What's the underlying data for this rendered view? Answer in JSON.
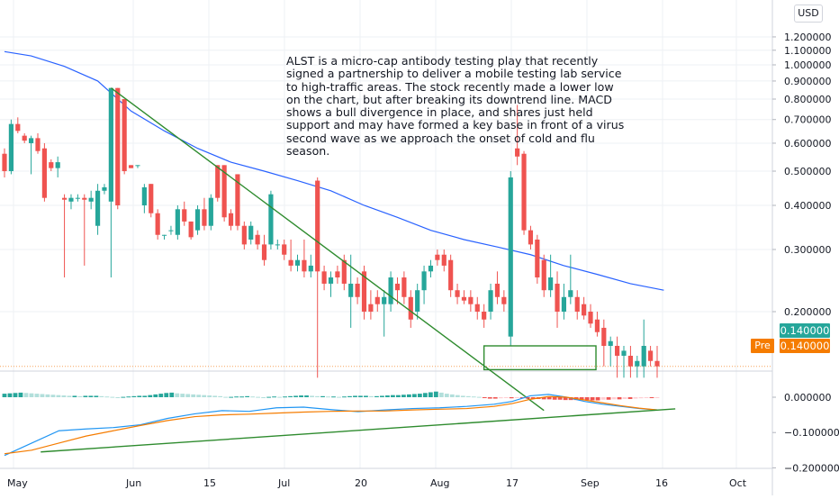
{
  "chart_data": [
    {
      "type": "candlestick",
      "symbol": "ALST",
      "currency": "USD",
      "scale": "log",
      "y_ticks": [
        "1.200000",
        "1.100000",
        "1.000000",
        "0.900000",
        "0.800000",
        "0.700000",
        "0.600000",
        "0.500000",
        "0.400000",
        "0.300000",
        "0.200000"
      ],
      "x_ticks": [
        "May",
        "Jun",
        "15",
        "Jul",
        "20",
        "Aug",
        "17",
        "Sep",
        "16",
        "Oct"
      ],
      "candles": [
        {
          "o": 0.56,
          "h": 0.58,
          "l": 0.48,
          "c": 0.5
        },
        {
          "o": 0.5,
          "h": 0.7,
          "l": 0.49,
          "c": 0.68
        },
        {
          "o": 0.68,
          "h": 0.71,
          "l": 0.64,
          "c": 0.65
        },
        {
          "o": 0.63,
          "h": 0.64,
          "l": 0.6,
          "c": 0.61
        },
        {
          "o": 0.6,
          "h": 0.63,
          "l": 0.49,
          "c": 0.62
        },
        {
          "o": 0.62,
          "h": 0.64,
          "l": 0.56,
          "c": 0.57
        },
        {
          "o": 0.58,
          "h": 0.6,
          "l": 0.41,
          "c": 0.42
        },
        {
          "o": 0.53,
          "h": 0.54,
          "l": 0.5,
          "c": 0.51
        },
        {
          "o": 0.51,
          "h": 0.55,
          "l": 0.48,
          "c": 0.53
        },
        {
          "o": 0.42,
          "h": 0.43,
          "l": 0.25,
          "c": 0.415
        },
        {
          "o": 0.41,
          "h": 0.43,
          "l": 0.39,
          "c": 0.42
        },
        {
          "o": 0.42,
          "h": 0.43,
          "l": 0.41,
          "c": 0.42
        },
        {
          "o": 0.42,
          "h": 0.43,
          "l": 0.27,
          "c": 0.415
        },
        {
          "o": 0.41,
          "h": 0.44,
          "l": 0.39,
          "c": 0.42
        },
        {
          "o": 0.35,
          "h": 0.46,
          "l": 0.33,
          "c": 0.44
        },
        {
          "o": 0.44,
          "h": 0.46,
          "l": 0.43,
          "c": 0.45
        },
        {
          "o": 0.41,
          "h": 0.86,
          "l": 0.25,
          "c": 0.86
        },
        {
          "o": 0.86,
          "h": 0.86,
          "l": 0.39,
          "c": 0.4
        },
        {
          "o": 0.8,
          "h": 0.8,
          "l": 0.49,
          "c": 0.5
        },
        {
          "o": 0.52,
          "h": 0.52,
          "l": 0.51,
          "c": 0.51
        },
        {
          "o": 0.52,
          "h": 0.52,
          "l": 0.51,
          "c": 0.52
        },
        {
          "o": 0.4,
          "h": 0.46,
          "l": 0.38,
          "c": 0.45
        },
        {
          "o": 0.46,
          "h": 0.46,
          "l": 0.37,
          "c": 0.38
        },
        {
          "o": 0.38,
          "h": 0.39,
          "l": 0.32,
          "c": 0.33
        },
        {
          "o": 0.33,
          "h": 0.33,
          "l": 0.32,
          "c": 0.33
        },
        {
          "o": 0.34,
          "h": 0.35,
          "l": 0.33,
          "c": 0.34
        },
        {
          "o": 0.33,
          "h": 0.4,
          "l": 0.32,
          "c": 0.39
        },
        {
          "o": 0.39,
          "h": 0.41,
          "l": 0.35,
          "c": 0.36
        },
        {
          "o": 0.36,
          "h": 0.36,
          "l": 0.32,
          "c": 0.325
        },
        {
          "o": 0.34,
          "h": 0.4,
          "l": 0.33,
          "c": 0.39
        },
        {
          "o": 0.39,
          "h": 0.42,
          "l": 0.34,
          "c": 0.35
        },
        {
          "o": 0.35,
          "h": 0.43,
          "l": 0.34,
          "c": 0.42
        },
        {
          "o": 0.52,
          "h": 0.52,
          "l": 0.41,
          "c": 0.42
        },
        {
          "o": 0.52,
          "h": 0.52,
          "l": 0.36,
          "c": 0.37
        },
        {
          "o": 0.38,
          "h": 0.39,
          "l": 0.34,
          "c": 0.35
        },
        {
          "o": 0.49,
          "h": 0.49,
          "l": 0.34,
          "c": 0.35
        },
        {
          "o": 0.35,
          "h": 0.36,
          "l": 0.3,
          "c": 0.31
        },
        {
          "o": 0.32,
          "h": 0.36,
          "l": 0.31,
          "c": 0.35
        },
        {
          "o": 0.33,
          "h": 0.34,
          "l": 0.3,
          "c": 0.31
        },
        {
          "o": 0.31,
          "h": 0.33,
          "l": 0.27,
          "c": 0.28
        },
        {
          "o": 0.31,
          "h": 0.44,
          "l": 0.3,
          "c": 0.43
        },
        {
          "o": 0.31,
          "h": 0.32,
          "l": 0.3,
          "c": 0.31
        },
        {
          "o": 0.31,
          "h": 0.32,
          "l": 0.28,
          "c": 0.29
        },
        {
          "o": 0.28,
          "h": 0.32,
          "l": 0.26,
          "c": 0.27
        },
        {
          "o": 0.27,
          "h": 0.29,
          "l": 0.26,
          "c": 0.28
        },
        {
          "o": 0.28,
          "h": 0.32,
          "l": 0.25,
          "c": 0.26
        },
        {
          "o": 0.26,
          "h": 0.29,
          "l": 0.25,
          "c": 0.27
        },
        {
          "o": 0.47,
          "h": 0.48,
          "l": 0.13,
          "c": 0.26
        },
        {
          "o": 0.26,
          "h": 0.27,
          "l": 0.23,
          "c": 0.24
        },
        {
          "o": 0.24,
          "h": 0.26,
          "l": 0.22,
          "c": 0.25
        },
        {
          "o": 0.26,
          "h": 0.27,
          "l": 0.24,
          "c": 0.25
        },
        {
          "o": 0.28,
          "h": 0.29,
          "l": 0.23,
          "c": 0.24
        },
        {
          "o": 0.22,
          "h": 0.29,
          "l": 0.18,
          "c": 0.24
        },
        {
          "o": 0.24,
          "h": 0.25,
          "l": 0.21,
          "c": 0.22
        },
        {
          "o": 0.26,
          "h": 0.27,
          "l": 0.19,
          "c": 0.2
        },
        {
          "o": 0.21,
          "h": 0.23,
          "l": 0.19,
          "c": 0.2
        },
        {
          "o": 0.22,
          "h": 0.23,
          "l": 0.2,
          "c": 0.21
        },
        {
          "o": 0.21,
          "h": 0.23,
          "l": 0.17,
          "c": 0.22
        },
        {
          "o": 0.21,
          "h": 0.26,
          "l": 0.2,
          "c": 0.25
        },
        {
          "o": 0.24,
          "h": 0.25,
          "l": 0.21,
          "c": 0.23
        },
        {
          "o": 0.25,
          "h": 0.26,
          "l": 0.21,
          "c": 0.22
        },
        {
          "o": 0.22,
          "h": 0.23,
          "l": 0.18,
          "c": 0.19
        },
        {
          "o": 0.2,
          "h": 0.24,
          "l": 0.19,
          "c": 0.23
        },
        {
          "o": 0.23,
          "h": 0.27,
          "l": 0.21,
          "c": 0.26
        },
        {
          "o": 0.26,
          "h": 0.28,
          "l": 0.25,
          "c": 0.27
        },
        {
          "o": 0.29,
          "h": 0.3,
          "l": 0.27,
          "c": 0.28
        },
        {
          "o": 0.29,
          "h": 0.3,
          "l": 0.26,
          "c": 0.27
        },
        {
          "o": 0.28,
          "h": 0.29,
          "l": 0.22,
          "c": 0.23
        },
        {
          "o": 0.23,
          "h": 0.24,
          "l": 0.21,
          "c": 0.22
        },
        {
          "o": 0.22,
          "h": 0.23,
          "l": 0.21,
          "c": 0.215
        },
        {
          "o": 0.22,
          "h": 0.23,
          "l": 0.2,
          "c": 0.21
        },
        {
          "o": 0.21,
          "h": 0.22,
          "l": 0.19,
          "c": 0.2
        },
        {
          "o": 0.2,
          "h": 0.21,
          "l": 0.18,
          "c": 0.19
        },
        {
          "o": 0.2,
          "h": 0.24,
          "l": 0.19,
          "c": 0.23
        },
        {
          "o": 0.24,
          "h": 0.26,
          "l": 0.21,
          "c": 0.22
        },
        {
          "o": 0.22,
          "h": 0.23,
          "l": 0.2,
          "c": 0.21
        },
        {
          "o": 0.17,
          "h": 0.5,
          "l": 0.16,
          "c": 0.48
        },
        {
          "o": 0.58,
          "h": 0.77,
          "l": 0.52,
          "c": 0.55
        },
        {
          "o": 0.56,
          "h": 0.57,
          "l": 0.33,
          "c": 0.34
        },
        {
          "o": 0.34,
          "h": 0.35,
          "l": 0.3,
          "c": 0.31
        },
        {
          "o": 0.32,
          "h": 0.33,
          "l": 0.24,
          "c": 0.25
        },
        {
          "o": 0.28,
          "h": 0.29,
          "l": 0.22,
          "c": 0.23
        },
        {
          "o": 0.23,
          "h": 0.29,
          "l": 0.22,
          "c": 0.25
        },
        {
          "o": 0.24,
          "h": 0.26,
          "l": 0.18,
          "c": 0.2
        },
        {
          "o": 0.2,
          "h": 0.24,
          "l": 0.19,
          "c": 0.22
        },
        {
          "o": 0.22,
          "h": 0.29,
          "l": 0.21,
          "c": 0.23
        },
        {
          "o": 0.22,
          "h": 0.23,
          "l": 0.19,
          "c": 0.2
        },
        {
          "o": 0.21,
          "h": 0.22,
          "l": 0.19,
          "c": 0.195
        },
        {
          "o": 0.2,
          "h": 0.21,
          "l": 0.18,
          "c": 0.185
        },
        {
          "o": 0.19,
          "h": 0.2,
          "l": 0.17,
          "c": 0.175
        },
        {
          "o": 0.18,
          "h": 0.19,
          "l": 0.14,
          "c": 0.16
        },
        {
          "o": 0.16,
          "h": 0.17,
          "l": 0.14,
          "c": 0.165
        },
        {
          "o": 0.16,
          "h": 0.17,
          "l": 0.13,
          "c": 0.15
        },
        {
          "o": 0.15,
          "h": 0.16,
          "l": 0.13,
          "c": 0.155
        },
        {
          "o": 0.15,
          "h": 0.16,
          "l": 0.13,
          "c": 0.14
        },
        {
          "o": 0.14,
          "h": 0.15,
          "l": 0.13,
          "c": 0.145
        },
        {
          "o": 0.14,
          "h": 0.19,
          "l": 0.13,
          "c": 0.16
        },
        {
          "o": 0.155,
          "h": 0.16,
          "l": 0.14,
          "c": 0.145
        },
        {
          "o": 0.145,
          "h": 0.16,
          "l": 0.13,
          "c": 0.14
        }
      ],
      "moving_average": [
        {
          "i": 0,
          "v": 1.09
        },
        {
          "i": 4,
          "v": 1.06
        },
        {
          "i": 9,
          "v": 0.99
        },
        {
          "i": 14,
          "v": 0.9
        },
        {
          "i": 19,
          "v": 0.74
        },
        {
          "i": 24,
          "v": 0.65
        },
        {
          "i": 29,
          "v": 0.58
        },
        {
          "i": 34,
          "v": 0.53
        },
        {
          "i": 39,
          "v": 0.5
        },
        {
          "i": 44,
          "v": 0.47
        },
        {
          "i": 49,
          "v": 0.44
        },
        {
          "i": 54,
          "v": 0.4
        },
        {
          "i": 59,
          "v": 0.37
        },
        {
          "i": 64,
          "v": 0.34
        },
        {
          "i": 69,
          "v": 0.32
        },
        {
          "i": 74,
          "v": 0.305
        },
        {
          "i": 79,
          "v": 0.29
        },
        {
          "i": 84,
          "v": 0.27
        },
        {
          "i": 89,
          "v": 0.255
        },
        {
          "i": 94,
          "v": 0.24
        },
        {
          "i": 99,
          "v": 0.23
        }
      ],
      "downtrend_line": [
        {
          "i": 16,
          "v": 0.86
        },
        {
          "i": 81,
          "v": 0.105
        }
      ],
      "support_box": {
        "i_start": 72,
        "i_end": 88,
        "v_top": 0.16,
        "v_bottom": 0.137
      },
      "last_price": "0.140000",
      "pre_label": "Pre",
      "pre_price": "0.140000"
    },
    {
      "type": "macd",
      "y_ticks": [
        "0.000000",
        "−0.100000",
        "−0.200000"
      ],
      "ylim": [
        -0.2,
        0.03
      ],
      "histogram": [
        0.01,
        0.011,
        0.012,
        0.013,
        0.012,
        0.011,
        0.01,
        0.009,
        0.008,
        0.007,
        0.006,
        0.005,
        0.004,
        0.004,
        0.003,
        0.004,
        0.004,
        0.004,
        0.003,
        0.002,
        0.001,
        0.0,
        0.001,
        0.002,
        0.003,
        0.004,
        0.004,
        0.006,
        0.008,
        0.01,
        0.012,
        0.013,
        0.011,
        0.01,
        0.009,
        0.008,
        0.007,
        0.006,
        0.005,
        0.004,
        0.003,
        0.001,
        0.001,
        0.002,
        0.002,
        0.003,
        0.002,
        0.001,
        0.0,
        0.001,
        0.002,
        0.001,
        0.002,
        0.003,
        0.004,
        0.005,
        0.005,
        0.004,
        0.003,
        0.003,
        0.002,
        0.002,
        0.001,
        0.002,
        0.003,
        0.004,
        0.004,
        0.004,
        0.003,
        0.003,
        0.004,
        0.005,
        0.006,
        0.006,
        0.007,
        0.008,
        0.009,
        0.01,
        0.012,
        0.014,
        0.016,
        0.013,
        0.01,
        0.008,
        0.006,
        0.004,
        0.003,
        0.002,
        0.001,
        -0.002,
        -0.004,
        -0.004,
        -0.003,
        -0.002,
        -0.003,
        -0.002,
        -0.003,
        -0.004,
        -0.005,
        -0.005,
        -0.006,
        -0.006,
        -0.007,
        -0.007,
        -0.008,
        -0.008,
        -0.008,
        -0.008,
        -0.008,
        -0.009,
        -0.009,
        -0.007,
        -0.007,
        -0.006,
        -0.006,
        -0.005,
        -0.005,
        -0.004,
        -0.003,
        -0.002,
        -0.002,
        -0.001
      ],
      "macd_line": [
        {
          "i": 0,
          "v": -0.165
        },
        {
          "i": 6,
          "v": -0.13
        },
        {
          "i": 12,
          "v": -0.095
        },
        {
          "i": 18,
          "v": -0.09
        },
        {
          "i": 24,
          "v": -0.086
        },
        {
          "i": 30,
          "v": -0.078
        },
        {
          "i": 36,
          "v": -0.06
        },
        {
          "i": 42,
          "v": -0.047
        },
        {
          "i": 48,
          "v": -0.038
        },
        {
          "i": 54,
          "v": -0.04
        },
        {
          "i": 60,
          "v": -0.03
        },
        {
          "i": 66,
          "v": -0.028
        },
        {
          "i": 72,
          "v": -0.035
        },
        {
          "i": 78,
          "v": -0.041
        },
        {
          "i": 84,
          "v": -0.036
        },
        {
          "i": 90,
          "v": -0.032
        },
        {
          "i": 96,
          "v": -0.03
        },
        {
          "i": 102,
          "v": -0.026
        },
        {
          "i": 108,
          "v": -0.02
        },
        {
          "i": 112,
          "v": -0.012
        },
        {
          "i": 116,
          "v": 0.004
        },
        {
          "i": 120,
          "v": 0.008
        },
        {
          "i": 124,
          "v": 0.0
        },
        {
          "i": 128,
          "v": -0.012
        },
        {
          "i": 132,
          "v": -0.02
        },
        {
          "i": 136,
          "v": -0.026
        },
        {
          "i": 140,
          "v": -0.032
        },
        {
          "i": 144,
          "v": -0.036
        }
      ],
      "signal_line": [
        {
          "i": 0,
          "v": -0.16
        },
        {
          "i": 6,
          "v": -0.15
        },
        {
          "i": 12,
          "v": -0.13
        },
        {
          "i": 18,
          "v": -0.11
        },
        {
          "i": 24,
          "v": -0.095
        },
        {
          "i": 30,
          "v": -0.08
        },
        {
          "i": 36,
          "v": -0.066
        },
        {
          "i": 42,
          "v": -0.055
        },
        {
          "i": 48,
          "v": -0.05
        },
        {
          "i": 54,
          "v": -0.048
        },
        {
          "i": 60,
          "v": -0.045
        },
        {
          "i": 66,
          "v": -0.042
        },
        {
          "i": 72,
          "v": -0.04
        },
        {
          "i": 78,
          "v": -0.039
        },
        {
          "i": 84,
          "v": -0.039
        },
        {
          "i": 90,
          "v": -0.036
        },
        {
          "i": 96,
          "v": -0.034
        },
        {
          "i": 102,
          "v": -0.032
        },
        {
          "i": 108,
          "v": -0.026
        },
        {
          "i": 112,
          "v": -0.018
        },
        {
          "i": 116,
          "v": -0.006
        },
        {
          "i": 120,
          "v": 0.002
        },
        {
          "i": 124,
          "v": 0.0
        },
        {
          "i": 128,
          "v": -0.008
        },
        {
          "i": 132,
          "v": -0.016
        },
        {
          "i": 136,
          "v": -0.024
        },
        {
          "i": 140,
          "v": -0.031
        },
        {
          "i": 144,
          "v": -0.036
        }
      ],
      "support_trendline": [
        {
          "i": 8,
          "v": -0.155
        },
        {
          "i": 148,
          "v": -0.033
        }
      ]
    }
  ],
  "annotation": {
    "text": "ALST is a micro-cap antibody testing play that recently\nsigned a partnership to deliver a mobile testing lab service\nto high-traffic areas. The stock recently made a lower low\non the chart, but after breaking its downtrend line. MACD\nshows a bull divergence in place, and shares just held\nsupport and may have formed a key base in front of a virus\nsecond wave as we approach the onset of cold and flu\nseason."
  },
  "colors": {
    "bull": "#26a69a",
    "bear": "#ef5350",
    "moving_average": "#2962ff",
    "trendline": "#2e8b2e",
    "macd": "#2196f3",
    "signal": "#f57c00",
    "grid": "#eef0f4",
    "axis_text": "#131722"
  }
}
